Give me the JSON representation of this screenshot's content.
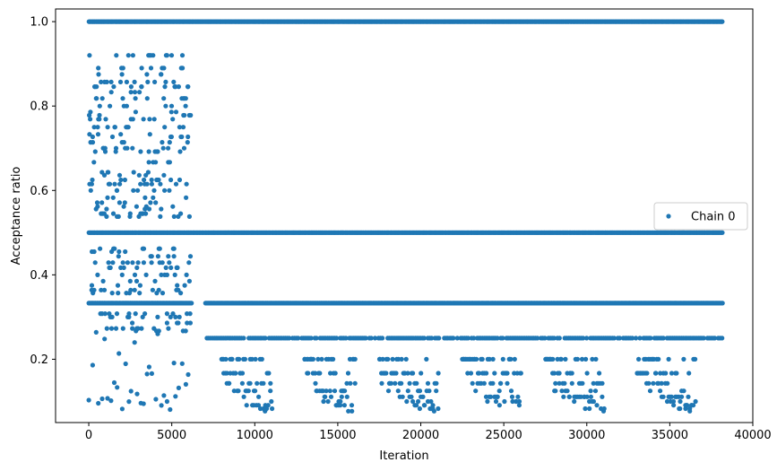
{
  "chart_data": {
    "type": "scatter",
    "xlabel": "Iteration",
    "ylabel": "Acceptance ratio",
    "xlim": [
      -2000,
      40000
    ],
    "ylim": [
      0.05,
      1.03
    ],
    "x_ticks": [
      0,
      5000,
      10000,
      15000,
      20000,
      25000,
      30000,
      35000,
      40000
    ],
    "x_tick_labels": [
      "0",
      "5000",
      "10000",
      "15000",
      "20000",
      "25000",
      "30000",
      "35000",
      "40000"
    ],
    "y_ticks": [
      0.2,
      0.4,
      0.6,
      0.8,
      1.0
    ],
    "y_tick_labels": [
      "0.2",
      "0.4",
      "0.6",
      "0.8",
      "1.0"
    ],
    "legend": {
      "placement": "center-right",
      "entries": [
        "Chain 0"
      ]
    },
    "grid": false,
    "series": [
      {
        "name": "Chain 0",
        "color": "#1f77b4",
        "bands": [
          {
            "y": 1.0,
            "x_start": 0,
            "x_end": 38200,
            "density": "dense"
          },
          {
            "y": 0.5,
            "x_start": 0,
            "x_end": 38200,
            "density": "dense"
          },
          {
            "y": 0.333,
            "x_start": 0,
            "x_end": 38200,
            "density": "dense"
          },
          {
            "y": 0.25,
            "x_start": 7000,
            "x_end": 38200,
            "density": "medium"
          }
        ],
        "early_phase": {
          "x_start": 0,
          "x_end": 6100,
          "y_min": 0.07,
          "y_max": 0.93
        },
        "late_clusters_x": [
          [
            8000,
            11000
          ],
          [
            13000,
            16000
          ],
          [
            17500,
            21000
          ],
          [
            22500,
            26000
          ],
          [
            27500,
            31000
          ],
          [
            33000,
            36500
          ]
        ],
        "late_levels": [
          0.2,
          0.167,
          0.143,
          0.125,
          0.111,
          0.1,
          0.091,
          0.083,
          0.077
        ]
      }
    ]
  }
}
